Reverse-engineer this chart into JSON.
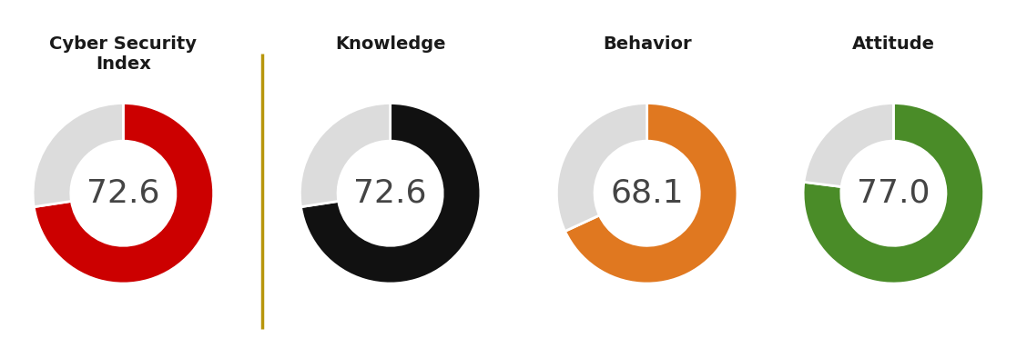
{
  "charts": [
    {
      "title": "Cyber Security\nIndex",
      "value": 72.6,
      "color": "#CC0000",
      "remainder_color": "#DCDCDC",
      "label": "72.6"
    },
    {
      "title": "Knowledge",
      "value": 72.6,
      "color": "#111111",
      "remainder_color": "#DCDCDC",
      "label": "72.6"
    },
    {
      "title": "Behavior",
      "value": 68.1,
      "color": "#E07820",
      "remainder_color": "#DCDCDC",
      "label": "68.1"
    },
    {
      "title": "Attitude",
      "value": 77.0,
      "color": "#4A8C28",
      "remainder_color": "#DCDCDC",
      "label": "77.0"
    }
  ],
  "background_color": "#FFFFFF",
  "divider_color": "#B8960C",
  "title_fontsize": 14,
  "value_fontsize": 26,
  "donut_width": 0.42,
  "start_angle": 90
}
